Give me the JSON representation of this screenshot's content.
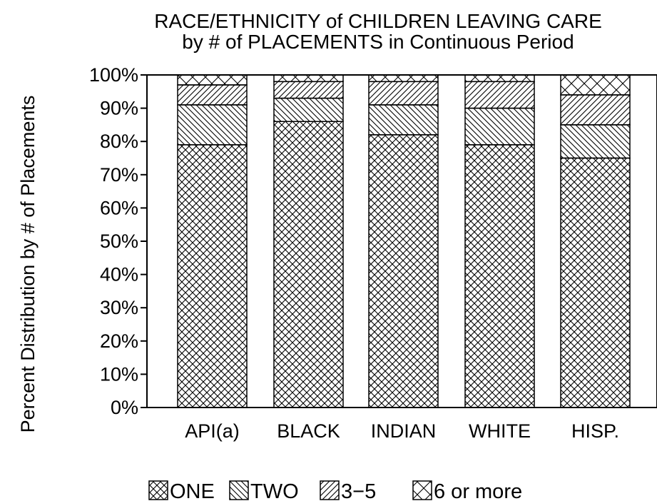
{
  "chart_data": {
    "type": "bar",
    "stacked": true,
    "title_line1": "RACE/ETHNICITY of CHILDREN LEAVING CARE",
    "title_line2": "by # of PLACEMENTS in Continuous Period",
    "ylabel": "Percent Distribution by # of Placements",
    "xlabel": "",
    "ylim": [
      0,
      100
    ],
    "yticks": [
      "0%",
      "10%",
      "20%",
      "30%",
      "40%",
      "50%",
      "60%",
      "70%",
      "80%",
      "90%",
      "100%"
    ],
    "categories": [
      "API(a)",
      "BLACK",
      "INDIAN",
      "WHITE",
      "HISP."
    ],
    "series": [
      {
        "name": "ONE",
        "pattern": "crosshatch-fine",
        "values": [
          79,
          86,
          82,
          79,
          75
        ]
      },
      {
        "name": "TWO",
        "pattern": "diag-down",
        "values": [
          12,
          7,
          9,
          11,
          10
        ]
      },
      {
        "name": "3-5",
        "pattern": "diag-up",
        "values": [
          6,
          5,
          7,
          8,
          9
        ]
      },
      {
        "name": "6 or more",
        "pattern": "crosshatch-coarse",
        "values": [
          3,
          2,
          2,
          2,
          6
        ]
      }
    ],
    "legend": [
      "ONE",
      "TWO",
      "3−5",
      "6 or more"
    ],
    "legend_position": "bottom",
    "grid": false
  }
}
